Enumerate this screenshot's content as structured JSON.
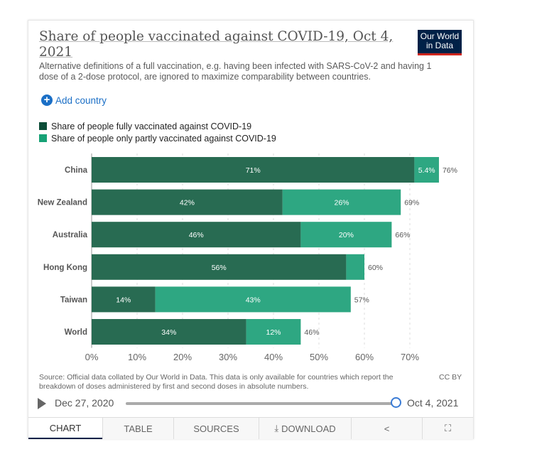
{
  "header": {
    "title": "Share of people vaccinated against COVID-19, Oct 4, 2021",
    "logo": "Our World in Data",
    "subtitle": "Alternative definitions of a full vaccination, e.g. having been infected with SARS-CoV-2 and having 1 dose of a 2-dose protocol, are ignored to maximize comparability between countries.",
    "add_country": "Add country"
  },
  "colors": {
    "full": "#286b52",
    "partial": "#2ea782",
    "full_legend": "#0d4d38",
    "partial_legend": "#17a276"
  },
  "chart_data": {
    "type": "bar",
    "stacked": true,
    "orientation": "horizontal",
    "categories": [
      "China",
      "New Zealand",
      "Australia",
      "Hong Kong",
      "Taiwan",
      "World"
    ],
    "series": [
      {
        "name": "Share of people fully vaccinated against COVID-19",
        "values": [
          71,
          42,
          46,
          56,
          14,
          34
        ],
        "labels": [
          "71%",
          "42%",
          "46%",
          "56%",
          "14%",
          "34%"
        ]
      },
      {
        "name": "Share of people only partly vaccinated against COVID-19",
        "values": [
          5.4,
          26,
          20,
          4,
          43,
          12
        ],
        "labels": [
          "5.4%",
          "26%",
          "20%",
          "",
          "43%",
          "12%"
        ]
      }
    ],
    "totals": [
      "76%",
      "69%",
      "66%",
      "60%",
      "57%",
      "46%"
    ],
    "xticks": [
      "0%",
      "10%",
      "20%",
      "30%",
      "40%",
      "50%",
      "60%",
      "70%"
    ],
    "xlim": [
      0,
      80
    ],
    "legend": "top-left"
  },
  "footer": {
    "source": "Source: Official data collated by Our World in Data. This data is only available for countries which report the breakdown of doses administered by first and second doses in absolute numbers.",
    "license": "CC BY"
  },
  "timeline": {
    "start": "Dec 27, 2020",
    "end": "Oct 4, 2021",
    "position": 1.0
  },
  "tabs": [
    "CHART",
    "TABLE",
    "SOURCES",
    "DOWNLOAD"
  ]
}
